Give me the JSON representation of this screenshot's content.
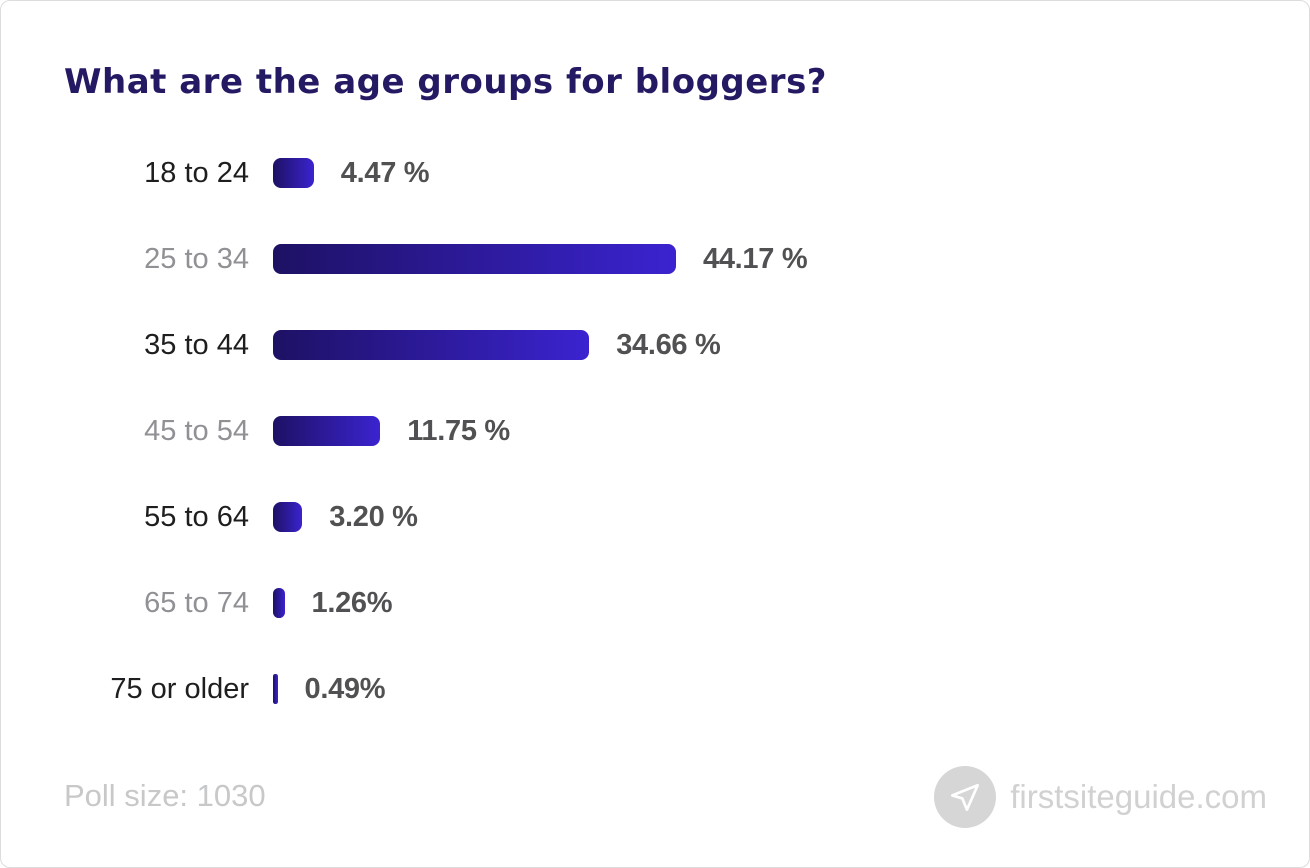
{
  "title": "What are the age groups for bloggers?",
  "footer": {
    "poll_size_label": "Poll size: 1030",
    "brand": "firstsiteguide.com",
    "brand_icon": "paper-plane-icon"
  },
  "colors": {
    "title": "#241a63",
    "bar_gradient_start": "#1d1164",
    "bar_gradient_end": "#3b23d0",
    "label_dark": "#1e1e20",
    "label_muted": "#909194",
    "value_text": "#515154",
    "footer_text": "#c7c8c9"
  },
  "chart_data": {
    "type": "bar",
    "orientation": "horizontal",
    "title": "What are the age groups for bloggers?",
    "xlabel": "",
    "ylabel": "",
    "xlim": [
      0,
      45
    ],
    "grid": false,
    "legend": false,
    "poll_size": 1030,
    "categories": [
      "18 to 24",
      "25 to 34",
      "35 to 44",
      "45 to 54",
      "55 to 64",
      "65 to 74",
      "75 or older"
    ],
    "values": [
      4.47,
      44.17,
      34.66,
      11.75,
      3.2,
      1.26,
      0.49
    ],
    "value_labels": [
      "4.47 %",
      "44.17 %",
      "34.66 %",
      "11.75 %",
      "3.20 %",
      "1.26%",
      "0.49%"
    ],
    "label_muted": [
      false,
      true,
      false,
      true,
      false,
      true,
      false
    ]
  }
}
